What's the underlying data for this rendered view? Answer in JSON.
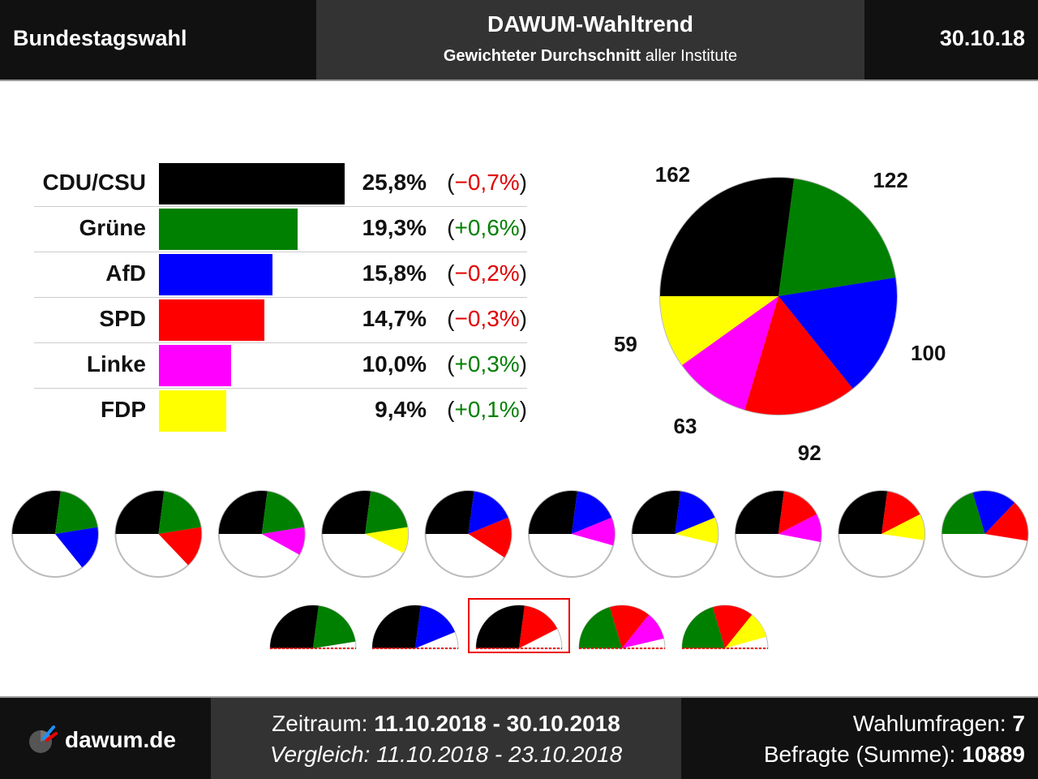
{
  "header": {
    "left_title": "Bundestagswahl",
    "center_title": "DAWUM-Wahltrend",
    "subtitle_bold": "Gewichteter Durchschnitt",
    "subtitle_rest": " aller Institute",
    "date": "30.10.18"
  },
  "chart_data": [
    {
      "type": "bar",
      "orientation": "horizontal",
      "categories": [
        "CDU/CSU",
        "Grüne",
        "AfD",
        "SPD",
        "Linke",
        "FDP"
      ],
      "values": [
        25.8,
        19.3,
        15.8,
        14.7,
        10.0,
        9.4
      ],
      "value_labels": [
        "25,8%",
        "19,3%",
        "15,8%",
        "14,7%",
        "10,0%",
        "9,4%"
      ],
      "change_values": [
        -0.7,
        0.6,
        -0.2,
        -0.3,
        0.3,
        0.1
      ],
      "change_labels": [
        "−0,7%",
        "+0,6%",
        "−0,2%",
        "−0,3%",
        "+0,3%",
        "+0,1%"
      ],
      "colors": [
        "#000000",
        "#008000",
        "#0000ff",
        "#ff0000",
        "#ff00ff",
        "#ffff00"
      ]
    },
    {
      "type": "pie",
      "order": [
        "CDU/CSU",
        "Grüne",
        "AfD",
        "SPD",
        "Linke",
        "FDP"
      ],
      "values": [
        162,
        122,
        100,
        92,
        63,
        59
      ],
      "labels": [
        "162",
        "122",
        "100",
        "92",
        "63",
        "59"
      ],
      "colors": [
        "#000000",
        "#008000",
        "#0000ff",
        "#ff0000",
        "#ff00ff",
        "#ffff00"
      ]
    }
  ],
  "coalitions": {
    "row1": [
      [
        "CDU/CSU",
        "Grüne",
        "AfD"
      ],
      [
        "CDU/CSU",
        "Grüne",
        "SPD"
      ],
      [
        "CDU/CSU",
        "Grüne",
        "Linke"
      ],
      [
        "CDU/CSU",
        "Grüne",
        "FDP"
      ],
      [
        "CDU/CSU",
        "AfD",
        "SPD"
      ],
      [
        "CDU/CSU",
        "AfD",
        "Linke"
      ],
      [
        "CDU/CSU",
        "AfD",
        "FDP"
      ],
      [
        "CDU/CSU",
        "SPD",
        "Linke"
      ],
      [
        "CDU/CSU",
        "SPD",
        "FDP"
      ],
      [
        "Grüne",
        "AfD",
        "SPD"
      ]
    ],
    "row2": [
      [
        "CDU/CSU",
        "Grüne"
      ],
      [
        "CDU/CSU",
        "AfD"
      ],
      [
        "CDU/CSU",
        "SPD"
      ],
      [
        "Grüne",
        "SPD",
        "Linke"
      ],
      [
        "Grüne",
        "SPD",
        "FDP"
      ]
    ],
    "highlighted_row2_index": 2
  },
  "footer": {
    "site": "dawum.de",
    "period_label": "Zeitraum: ",
    "period_value": "11.10.2018 - 30.10.2018",
    "compare_label": "Vergleich: ",
    "compare_value": "11.10.2018 - 23.10.2018",
    "polls_label": "Wahlumfragen: ",
    "polls_value": "7",
    "respondents_label": "Befragte (Summe): ",
    "respondents_value": "10889"
  }
}
